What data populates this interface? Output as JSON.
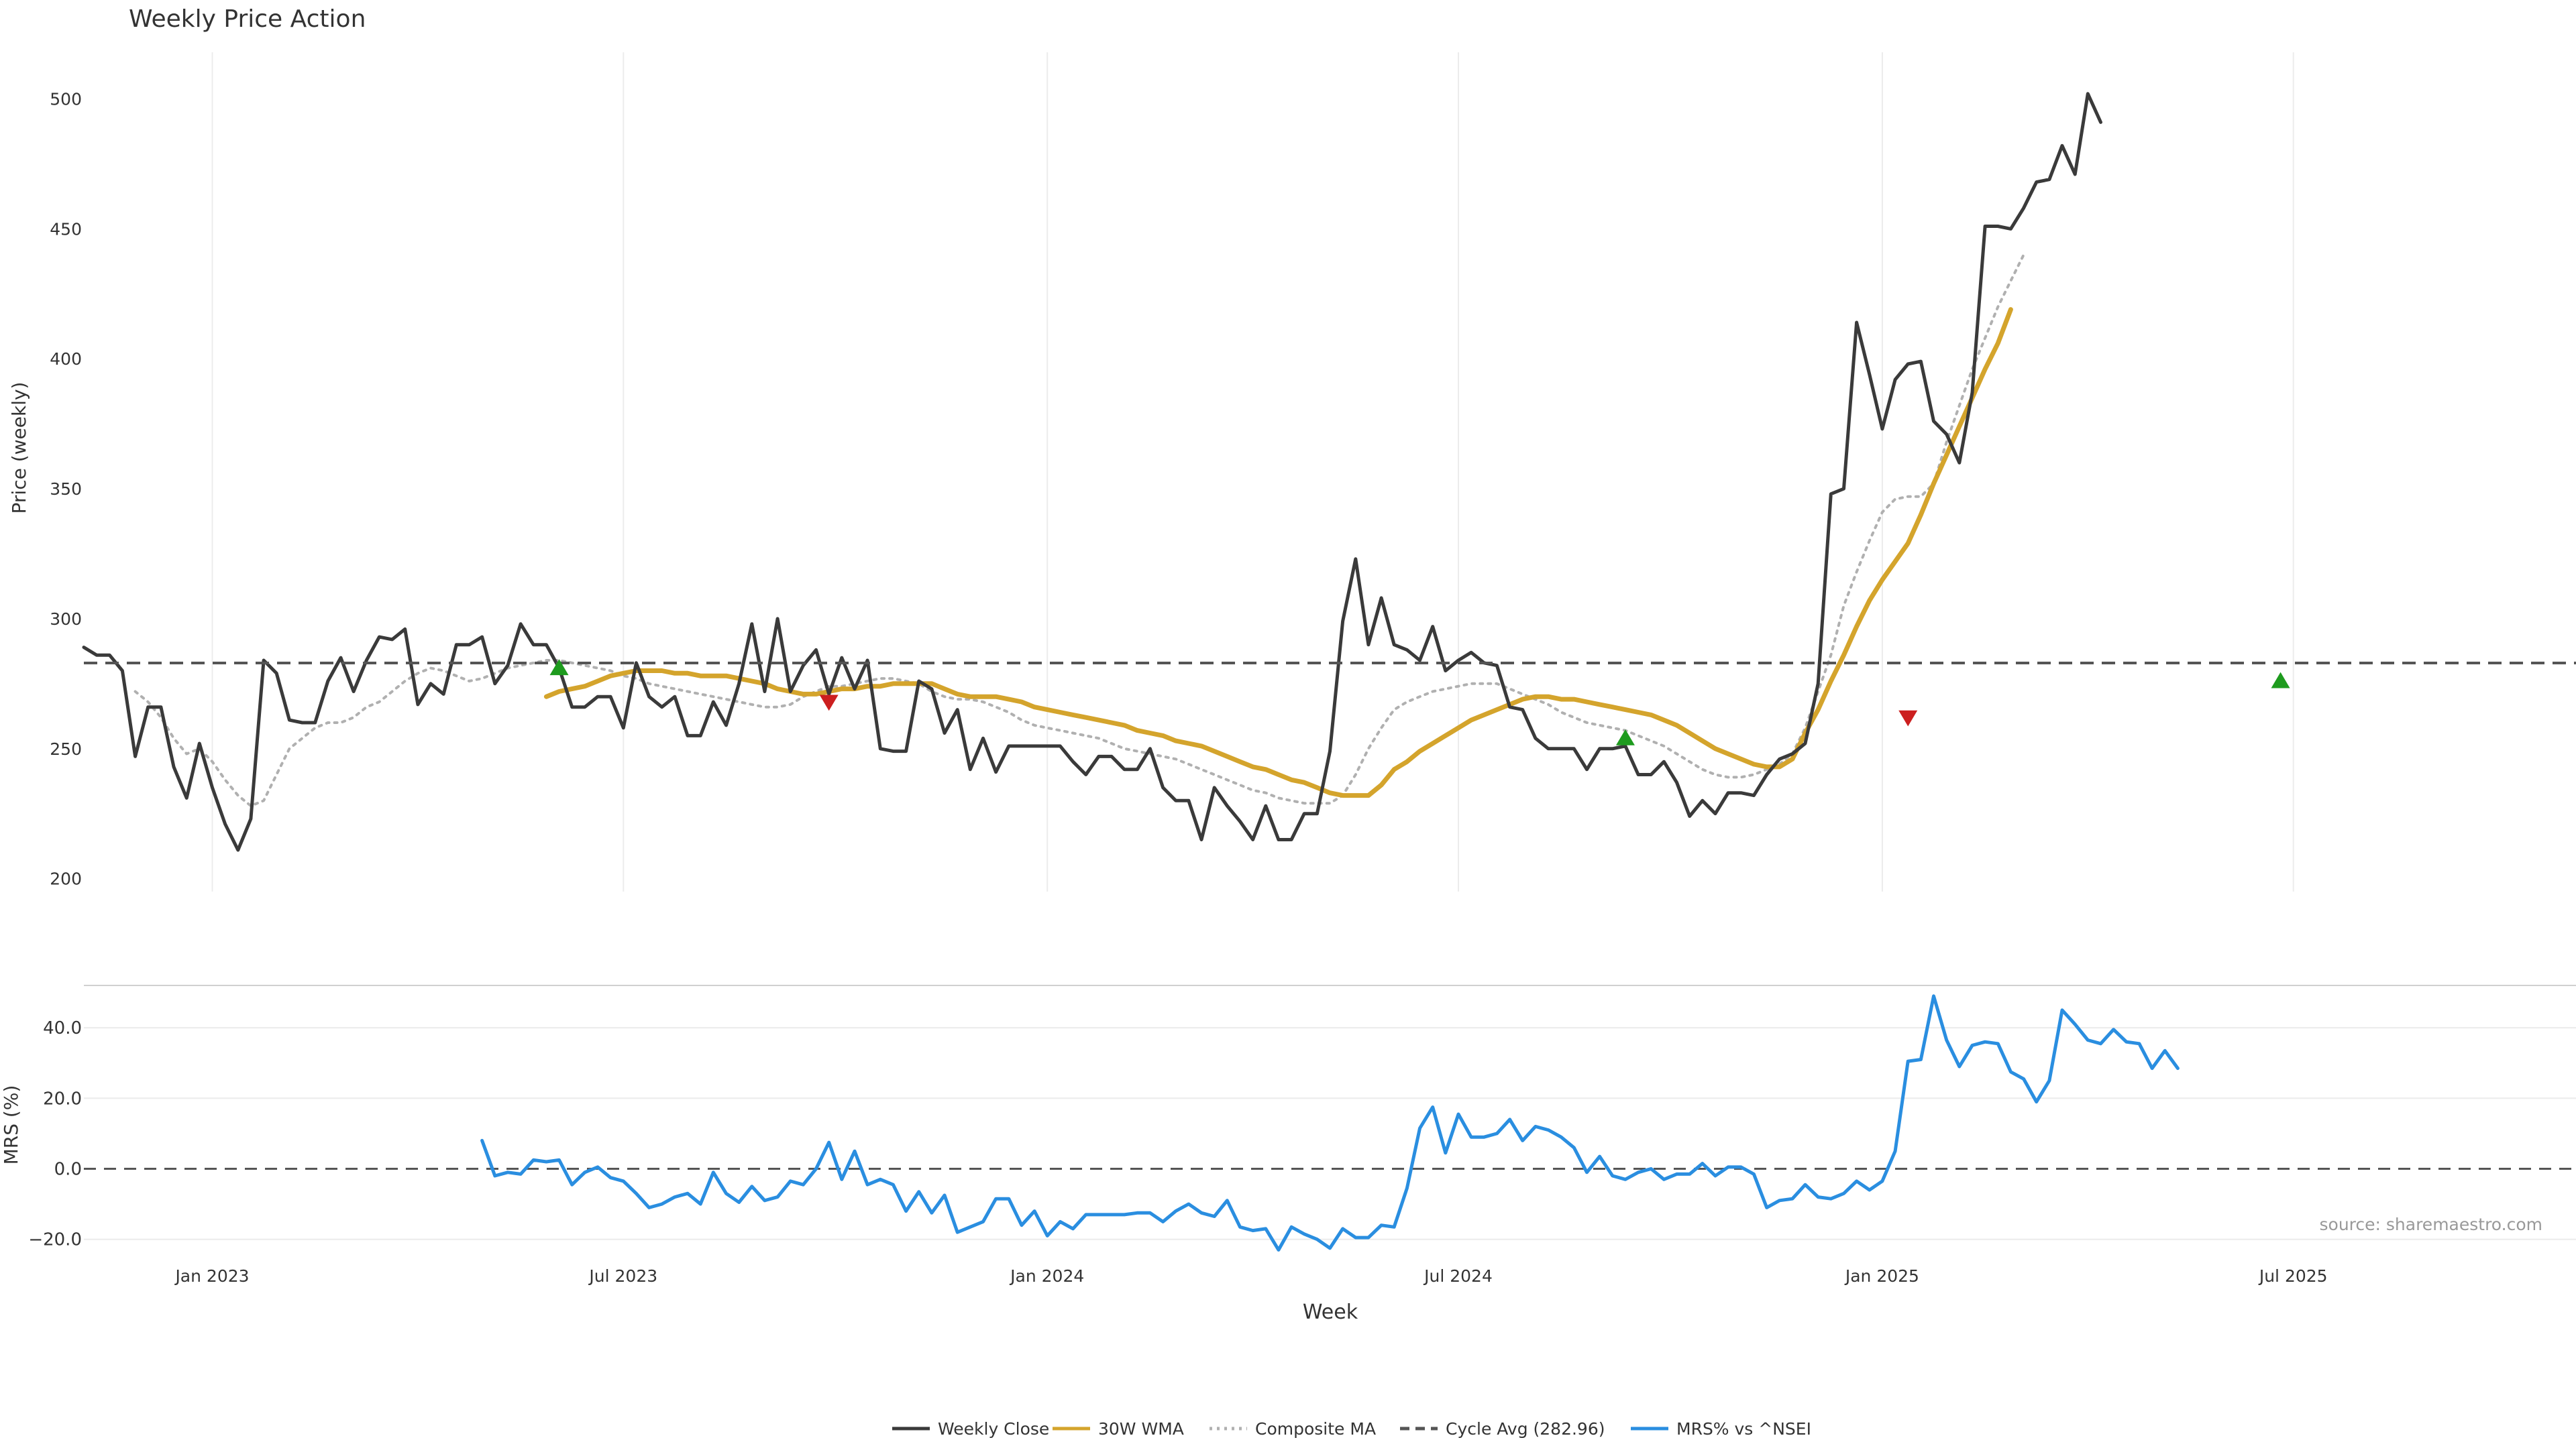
{
  "chart_data": {
    "type": "line",
    "title": "Weekly Price Action",
    "xlabel": "Week",
    "watermark": "source: sharemaestro.com",
    "x_ticks": [
      "Jan 2023",
      "Jul 2023",
      "Jan 2024",
      "Jul 2024",
      "Jan 2025",
      "Jul 2025"
    ],
    "x_tick_weeks": [
      10,
      42,
      75,
      107,
      140,
      172
    ],
    "week_range": [
      0,
      194
    ],
    "price_panel": {
      "ylabel": "Price (weekly)",
      "ylim": [
        195,
        520
      ],
      "y_ticks": [
        200,
        250,
        300,
        350,
        400,
        450,
        500
      ],
      "y_tick_labels": [
        "200",
        "250",
        "300",
        "350",
        "400",
        "450",
        "500"
      ],
      "cycle_avg": 282.96,
      "series": [
        {
          "name": "Weekly Close",
          "color": "#3a3a3a",
          "start": 0,
          "values": [
            289,
            286,
            286,
            280,
            247,
            266,
            266,
            243,
            231,
            252,
            235,
            221,
            211,
            223,
            284,
            279,
            261,
            260,
            260,
            276,
            285,
            272,
            284,
            293,
            292,
            296,
            267,
            275,
            271,
            290,
            290,
            293,
            275,
            282,
            298,
            290,
            290,
            281,
            266,
            266,
            270,
            270,
            258,
            283,
            270,
            266,
            270,
            255,
            255,
            268,
            259,
            275,
            298,
            272,
            300,
            272,
            282,
            288,
            271,
            285,
            273,
            284,
            250,
            249,
            249,
            276,
            273,
            256,
            265,
            242,
            254,
            241,
            251,
            251,
            251,
            251,
            251,
            245,
            240,
            247,
            247,
            242,
            242,
            250,
            235,
            230,
            230,
            215,
            235,
            228,
            222,
            215,
            228,
            215,
            215,
            225,
            225,
            249,
            299,
            323,
            290,
            308,
            290,
            288,
            284,
            297,
            280,
            284,
            287,
            283,
            282,
            266,
            265,
            254,
            250,
            250,
            250,
            242,
            250,
            250,
            251,
            240,
            240,
            245,
            237,
            224,
            230,
            225,
            233,
            233,
            232,
            240,
            246,
            248,
            252,
            275,
            348,
            350,
            414,
            394,
            373,
            392,
            398,
            399,
            376,
            371,
            360,
            387,
            451,
            451,
            450,
            458,
            468,
            469,
            482,
            471,
            502,
            491
          ]
        },
        {
          "name": "30W WMA",
          "color": "#d4a42c",
          "start": 36,
          "values": [
            270,
            272,
            273,
            274,
            276,
            278,
            279,
            280,
            280,
            280,
            279,
            279,
            278,
            278,
            278,
            277,
            276,
            275,
            273,
            272,
            271,
            271,
            272,
            273,
            273,
            274,
            274,
            275,
            275,
            275,
            275,
            273,
            271,
            270,
            270,
            270,
            269,
            268,
            266,
            265,
            264,
            263,
            262,
            261,
            260,
            259,
            257,
            256,
            255,
            253,
            252,
            251,
            249,
            247,
            245,
            243,
            242,
            240,
            238,
            237,
            235,
            233,
            232,
            232,
            232,
            236,
            242,
            245,
            249,
            252,
            255,
            258,
            261,
            263,
            265,
            267,
            269,
            270,
            270,
            269,
            269,
            268,
            267,
            266,
            265,
            264,
            263,
            261,
            259,
            256,
            253,
            250,
            248,
            246,
            244,
            243,
            243,
            246,
            256,
            265,
            276,
            286,
            297,
            307,
            315,
            322,
            329,
            340,
            352,
            363,
            374,
            385,
            396,
            406,
            419
          ]
        },
        {
          "name": "Composite MA",
          "color": "#b0b0b0",
          "start": 4,
          "values": [
            272,
            268,
            262,
            254,
            248,
            250,
            245,
            238,
            232,
            228,
            230,
            240,
            250,
            254,
            258,
            260,
            260,
            262,
            266,
            268,
            272,
            276,
            279,
            281,
            280,
            278,
            276,
            277,
            279,
            281,
            282,
            283,
            284,
            284,
            283,
            282,
            281,
            280,
            278,
            277,
            275,
            274,
            273,
            272,
            271,
            270,
            269,
            268,
            267,
            266,
            266,
            267,
            270,
            272,
            274,
            274,
            275,
            276,
            277,
            277,
            276,
            275,
            272,
            270,
            269,
            269,
            268,
            266,
            264,
            261,
            259,
            258,
            257,
            256,
            255,
            254,
            252,
            250,
            249,
            248,
            247,
            246,
            244,
            242,
            240,
            238,
            236,
            234,
            233,
            231,
            230,
            229,
            229,
            229,
            232,
            240,
            250,
            258,
            265,
            268,
            270,
            272,
            273,
            274,
            275,
            275,
            275,
            273,
            271,
            269,
            267,
            264,
            262,
            260,
            259,
            258,
            257,
            255,
            253,
            251,
            248,
            245,
            242,
            240,
            239,
            239,
            240,
            242,
            244,
            248,
            258,
            272,
            286,
            305,
            318,
            330,
            341,
            346,
            347,
            347,
            352,
            368,
            382,
            396,
            408,
            420,
            430,
            440
          ]
        }
      ],
      "markers": [
        {
          "kind": "buy",
          "week": 37,
          "value": 281,
          "color": "#1e9b1e"
        },
        {
          "kind": "sell",
          "week": 58,
          "value": 268,
          "color": "#cc1f1f"
        },
        {
          "kind": "buy",
          "week": 120,
          "value": 254,
          "color": "#1e9b1e"
        },
        {
          "kind": "sell",
          "week": 142,
          "value": 262,
          "color": "#cc1f1f"
        },
        {
          "kind": "buy",
          "week": 171,
          "value": 276,
          "color": "#1e9b1e"
        }
      ]
    },
    "mrs_panel": {
      "ylabel": "MRS (%)",
      "ylim": [
        -25,
        52
      ],
      "y_ticks": [
        -20,
        0,
        20,
        40
      ],
      "y_tick_labels": [
        "−20.0",
        "0.0",
        "20.0",
        "40.0"
      ],
      "series": [
        {
          "name": "MRS% vs ^NSEI",
          "color": "#2a8ee0",
          "start": 31,
          "values": [
            8,
            -2,
            -1,
            -1.5,
            2.5,
            2,
            2.5,
            -4.5,
            -1,
            0.5,
            -2.5,
            -3.5,
            -7,
            -11,
            -10,
            -8,
            -7,
            -10,
            -1,
            -7,
            -9.5,
            -5,
            -9,
            -8,
            -3.5,
            -4.5,
            0,
            7.5,
            -3,
            5,
            -4.5,
            -3,
            -4.5,
            -12,
            -6.5,
            -12.5,
            -7.5,
            -18,
            -16.5,
            -15,
            -8.5,
            -8.5,
            -16,
            -12,
            -19,
            -15,
            -17,
            -13,
            -13,
            -13,
            -13,
            -12.5,
            -12.5,
            -15,
            -12,
            -10,
            -12.5,
            -13.5,
            -9,
            -16.5,
            -17.5,
            -17,
            -23,
            -16.5,
            -18.5,
            -20,
            -22.5,
            -17,
            -19.5,
            -19.5,
            -16,
            -16.5,
            -5.5,
            11.5,
            17.5,
            4.5,
            15.5,
            9,
            9,
            10,
            14,
            8,
            12,
            11,
            9,
            6,
            -1,
            3.5,
            -2,
            -3,
            -1,
            0,
            -3,
            -1.5,
            -1.5,
            1.5,
            -2,
            0.5,
            0.5,
            -1.5,
            -11,
            -9,
            -8.5,
            -4.5,
            -8,
            -8.5,
            -7,
            -3.5,
            -6,
            -3.5,
            5,
            30.5,
            31,
            49,
            36.5,
            29,
            35,
            36,
            35.5,
            27.5,
            25.5,
            19,
            25,
            45,
            41,
            36.5,
            35.5,
            39.5,
            36,
            35.5,
            28.5,
            33.5,
            28.5
          ]
        }
      ]
    },
    "legend": {
      "placement": "bottom-center",
      "items": [
        {
          "label": "Weekly Close",
          "color": "#3a3a3a",
          "style": "solid"
        },
        {
          "label": "30W WMA",
          "color": "#d4a42c",
          "style": "solid"
        },
        {
          "label": "Composite MA",
          "color": "#b0b0b0",
          "style": "dotted"
        },
        {
          "label": "Cycle Avg (282.96)",
          "color": "#555555",
          "style": "dashed"
        },
        {
          "label": "MRS% vs ^NSEI",
          "color": "#2a8ee0",
          "style": "solid"
        }
      ]
    }
  }
}
